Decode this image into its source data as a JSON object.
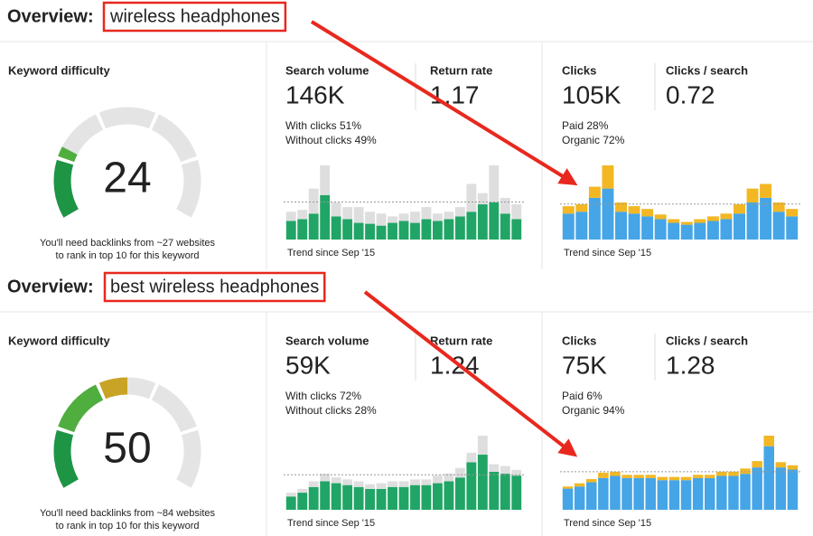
{
  "panels": [
    {
      "heading": "Overview:",
      "query": "wireless headphones",
      "keyword_difficulty": {
        "label": "Keyword difficulty",
        "value": 24,
        "note": [
          "You'll need backlinks from ~27 websites",
          "to rank in top 10 for this keyword"
        ]
      },
      "search_volume": {
        "label": "Search volume",
        "value": "146K",
        "trend_label": "Trend since Sep '15",
        "series": [
          {
            "label": "With clicks 51%",
            "color": "#21a566",
            "text_color": "#1a9a5c",
            "values": [
              20,
              22,
              28,
              48,
              25,
              22,
              18,
              17,
              15,
              18,
              20,
              18,
              22,
              20,
              22,
              25,
              30,
              38,
              40,
              28,
              22
            ]
          },
          {
            "label": "Without clicks 49%",
            "color": "#dedede",
            "text_color": "#8a8a8a",
            "values": [
              10,
              10,
              27,
              32,
              15,
              13,
              17,
              13,
              13,
              7,
              8,
              12,
              13,
              8,
              8,
              10,
              30,
              12,
              40,
              17,
              16
            ]
          }
        ]
      },
      "return_rate": {
        "label": "Return rate",
        "value": "1.17"
      },
      "clicks": {
        "label": "Clicks",
        "value": "105K",
        "trend_label": "Trend since Sep '15",
        "series": [
          {
            "label": "Organic 72%",
            "color": "#45a5e6",
            "text_color": "#3b9fe0",
            "values": [
              28,
              30,
              45,
              55,
              30,
              28,
              25,
              22,
              18,
              16,
              18,
              20,
              22,
              28,
              40,
              45,
              30,
              25
            ]
          },
          {
            "label": "Paid 28%",
            "color": "#f2b723",
            "text_color": "#eda51a",
            "values": [
              8,
              8,
              12,
              25,
              10,
              8,
              8,
              5,
              4,
              3,
              4,
              5,
              6,
              10,
              15,
              15,
              10,
              8
            ]
          }
        ]
      },
      "clicks_per_search": {
        "label": "Clicks / search",
        "value": "0.72"
      }
    },
    {
      "heading": "Overview:",
      "query": "best wireless headphones",
      "keyword_difficulty": {
        "label": "Keyword difficulty",
        "value": 50,
        "note": [
          "You'll need backlinks from ~84 websites",
          "to rank in top 10 for this keyword"
        ]
      },
      "search_volume": {
        "label": "Search volume",
        "value": "59K",
        "trend_label": "Trend since Sep '15",
        "series": [
          {
            "label": "With clicks 72%",
            "color": "#21a566",
            "text_color": "#1a9a5c",
            "values": [
              14,
              18,
              24,
              30,
              28,
              26,
              24,
              22,
              22,
              24,
              24,
              26,
              26,
              28,
              30,
              34,
              50,
              58,
              40,
              38,
              36
            ]
          },
          {
            "label": "Without clicks 28%",
            "color": "#dedede",
            "text_color": "#8a8a8a",
            "values": [
              4,
              4,
              6,
              8,
              6,
              6,
              6,
              5,
              6,
              6,
              6,
              6,
              6,
              8,
              8,
              10,
              10,
              20,
              8,
              8,
              6
            ]
          }
        ]
      },
      "return_rate": {
        "label": "Return rate",
        "value": "1.24"
      },
      "clicks": {
        "label": "Clicks",
        "value": "75K",
        "trend_label": "Trend since Sep '15",
        "series": [
          {
            "label": "Organic 94%",
            "color": "#45a5e6",
            "text_color": "#3b9fe0",
            "values": [
              20,
              22,
              26,
              30,
              32,
              30,
              30,
              30,
              28,
              28,
              28,
              30,
              30,
              32,
              32,
              34,
              40,
              60,
              40,
              38
            ]
          },
          {
            "label": "Paid 6%",
            "color": "#f2b723",
            "text_color": "#eda51a",
            "values": [
              2,
              3,
              3,
              5,
              4,
              3,
              3,
              3,
              3,
              3,
              3,
              3,
              3,
              4,
              4,
              5,
              6,
              10,
              5,
              4
            ]
          }
        ]
      },
      "clicks_per_search": {
        "label": "Clicks / search",
        "value": "1.28"
      }
    }
  ]
}
